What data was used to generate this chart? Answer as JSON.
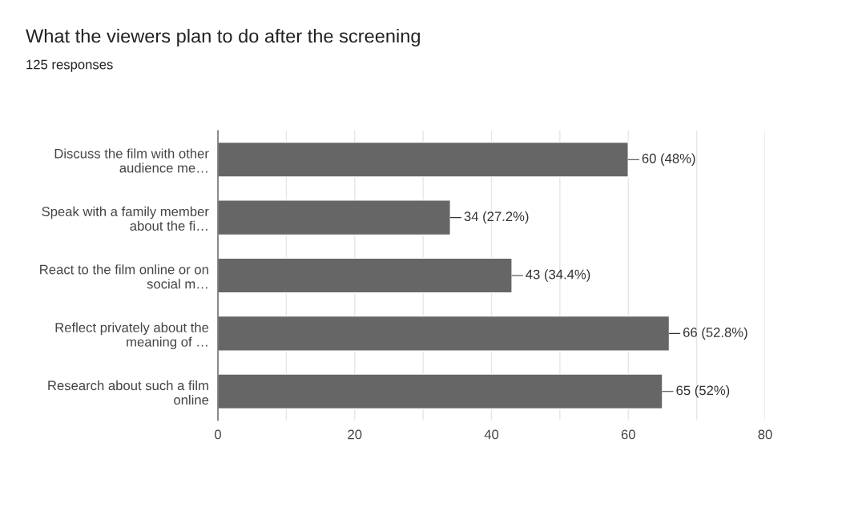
{
  "chart_data": {
    "type": "bar",
    "orientation": "horizontal",
    "title": "What the viewers plan to do after the screening",
    "subtitle": "125 responses",
    "categories": [
      "Discuss the film with other\naudience me…",
      "Speak with a family member\nabout the fi…",
      "React to the film online or on\nsocial m…",
      "Reflect privately about the\nmeaning of …",
      "Research about such a film\nonline"
    ],
    "values": [
      60,
      34,
      43,
      66,
      65
    ],
    "value_labels": [
      "60 (48%)",
      "34 (27.2%)",
      "43 (34.4%)",
      "66 (52.8%)",
      "65 (52%)"
    ],
    "color": "#666666",
    "xlim": [
      0,
      80
    ],
    "xticks": [
      0,
      {
        "value": 10,
        "label": null
      },
      20,
      {
        "value": 30,
        "label": null
      },
      40,
      {
        "value": 50,
        "label": null
      },
      60,
      {
        "value": 70,
        "label": null
      },
      80
    ],
    "grid": "x"
  }
}
